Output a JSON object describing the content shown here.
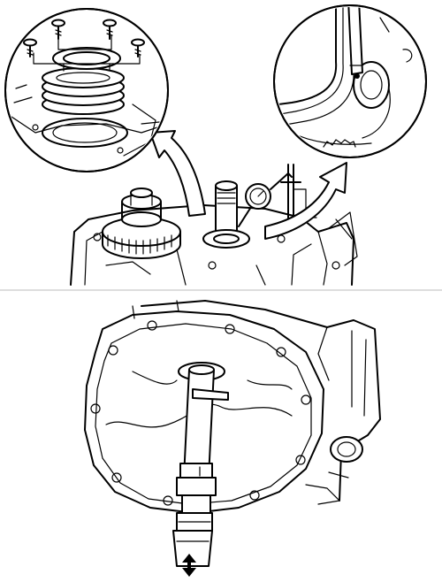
{
  "figure": {
    "panels": [
      {
        "id": "top",
        "callouts": [
          "detail-left",
          "detail-right"
        ]
      },
      {
        "id": "bottom"
      }
    ],
    "colors": {
      "line": "#000000",
      "background": "#ffffff",
      "divider": "#bbbbbb"
    },
    "icons": [
      "curved-arrow-icon",
      "double-arrow-icon",
      "screw-icon"
    ]
  }
}
